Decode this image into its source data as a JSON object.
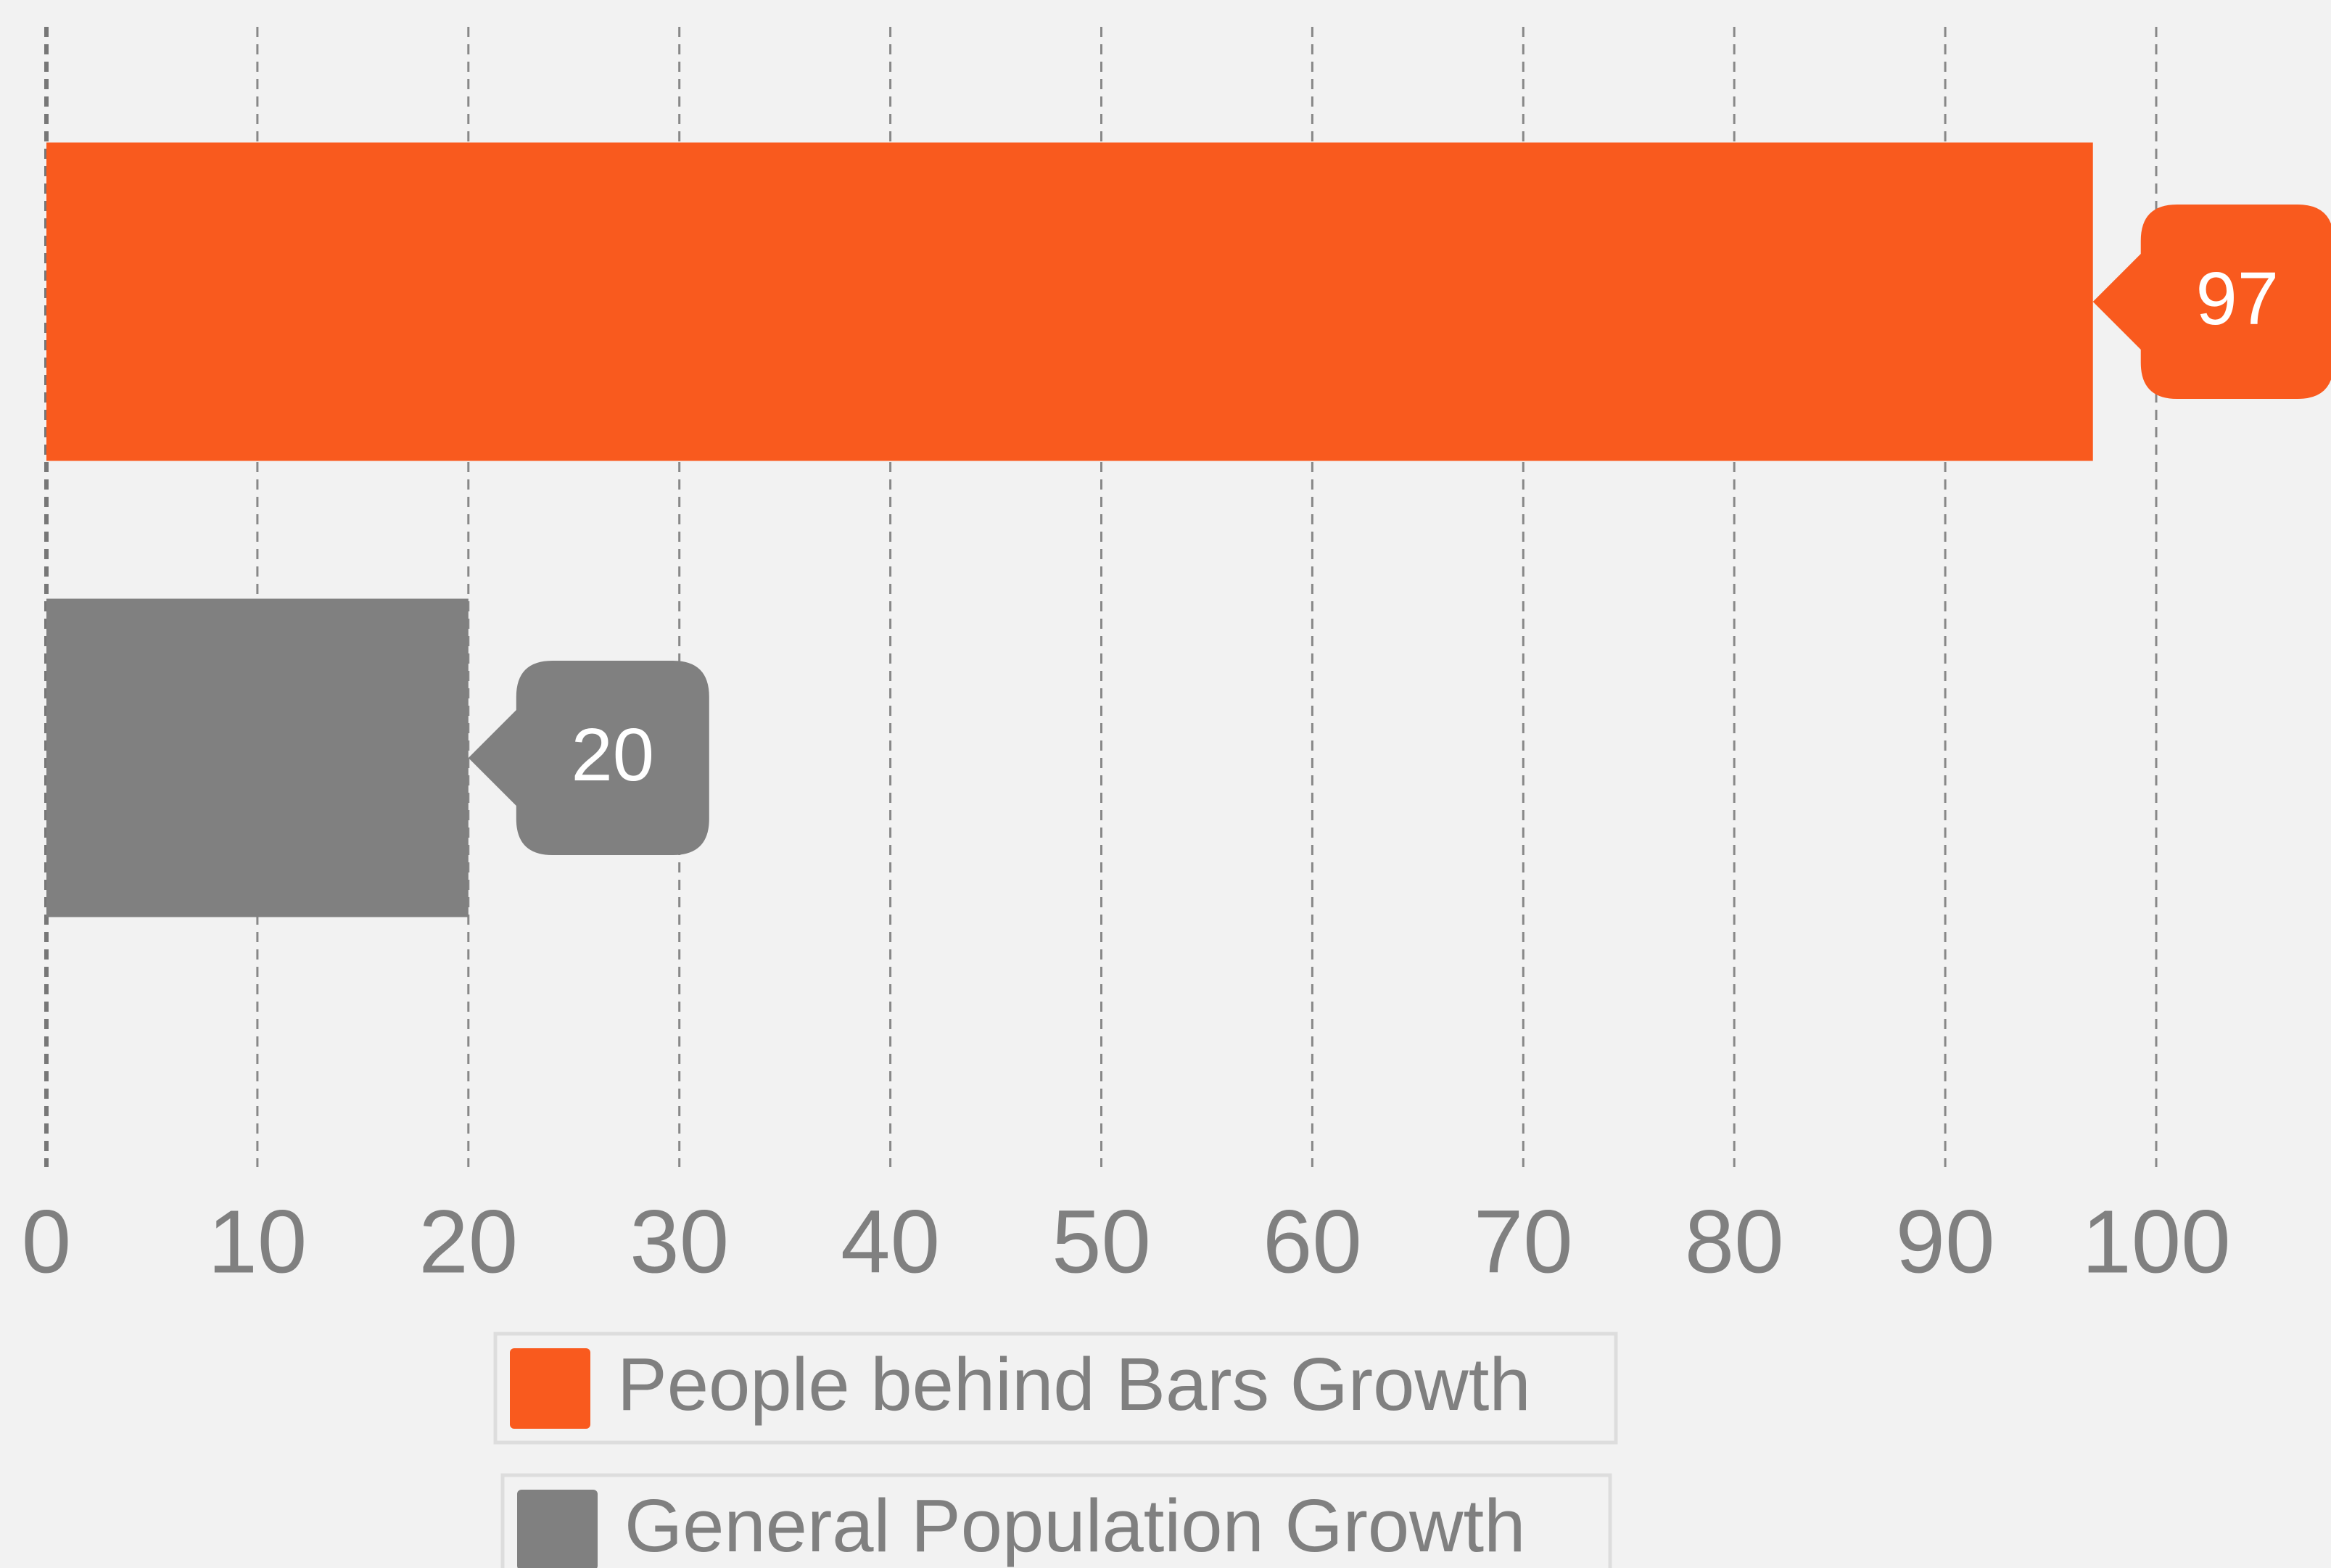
{
  "chart_data": {
    "type": "bar",
    "orientation": "horizontal",
    "categories": [
      null
    ],
    "series": [
      {
        "name": "People behind Bars Growth",
        "color": "#f95a1e",
        "values": [
          97
        ]
      },
      {
        "name": "General Population Growth",
        "color": "#808080",
        "values": [
          20
        ]
      }
    ],
    "xlim": [
      0,
      100
    ],
    "xticks": [
      0,
      10,
      20,
      30,
      40,
      50,
      60,
      70,
      80,
      90,
      100
    ],
    "grid": true,
    "legend": "bottom"
  }
}
